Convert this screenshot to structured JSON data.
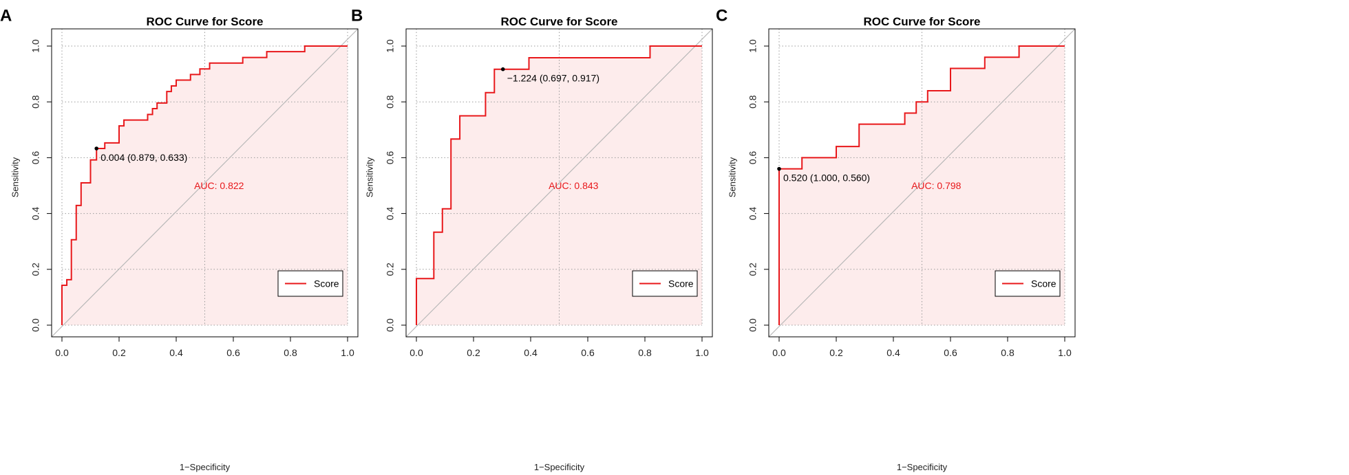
{
  "colors": {
    "curve": "#e8171a",
    "fill": "#fdecec",
    "diagonal": "#b8b8b8",
    "grid": "#9a9a9a",
    "frame": "#000000"
  },
  "chart_data": [
    {
      "type": "line",
      "panel_label": "A",
      "title": "ROC Curve for Score",
      "xlabel": "1−Specificity",
      "ylabel": "Sensitivity",
      "xlim": [
        0,
        1
      ],
      "ylim": [
        0,
        1
      ],
      "x_ticks": [
        "0.0",
        "0.2",
        "0.4",
        "0.6",
        "0.8",
        "1.0"
      ],
      "y_ticks": [
        "0.0",
        "0.2",
        "0.4",
        "0.6",
        "0.8",
        "1.0"
      ],
      "grid": true,
      "series": [
        {
          "name": "Score",
          "points": [
            [
              0,
              0
            ],
            [
              0,
              0.143
            ],
            [
              0.017,
              0.143
            ],
            [
              0.017,
              0.163
            ],
            [
              0.033,
              0.163
            ],
            [
              0.033,
              0.306
            ],
            [
              0.05,
              0.306
            ],
            [
              0.05,
              0.429
            ],
            [
              0.067,
              0.429
            ],
            [
              0.067,
              0.51
            ],
            [
              0.1,
              0.51
            ],
            [
              0.1,
              0.592
            ],
            [
              0.121,
              0.592
            ],
            [
              0.121,
              0.633
            ],
            [
              0.15,
              0.633
            ],
            [
              0.15,
              0.653
            ],
            [
              0.2,
              0.653
            ],
            [
              0.2,
              0.714
            ],
            [
              0.217,
              0.714
            ],
            [
              0.217,
              0.735
            ],
            [
              0.3,
              0.735
            ],
            [
              0.3,
              0.755
            ],
            [
              0.317,
              0.755
            ],
            [
              0.317,
              0.776
            ],
            [
              0.333,
              0.776
            ],
            [
              0.333,
              0.796
            ],
            [
              0.367,
              0.796
            ],
            [
              0.367,
              0.837
            ],
            [
              0.383,
              0.837
            ],
            [
              0.383,
              0.857
            ],
            [
              0.4,
              0.857
            ],
            [
              0.4,
              0.878
            ],
            [
              0.45,
              0.878
            ],
            [
              0.45,
              0.898
            ],
            [
              0.483,
              0.898
            ],
            [
              0.483,
              0.918
            ],
            [
              0.517,
              0.918
            ],
            [
              0.517,
              0.939
            ],
            [
              0.633,
              0.939
            ],
            [
              0.633,
              0.959
            ],
            [
              0.717,
              0.959
            ],
            [
              0.717,
              0.98
            ],
            [
              0.85,
              0.98
            ],
            [
              0.85,
              1.0
            ],
            [
              1.0,
              1.0
            ]
          ]
        }
      ],
      "auc_text": "AUC: 0.822",
      "threshold_point": {
        "fpr": 0.121,
        "tpr": 0.633,
        "label": "0.004 (0.879, 0.633)"
      },
      "legend": {
        "label": "Score",
        "position": "bottom-right"
      }
    },
    {
      "type": "line",
      "panel_label": "B",
      "title": "ROC Curve for Score",
      "xlabel": "1−Specificity",
      "ylabel": "Sensitivity",
      "xlim": [
        0,
        1
      ],
      "ylim": [
        0,
        1
      ],
      "x_ticks": [
        "0.0",
        "0.2",
        "0.4",
        "0.6",
        "0.8",
        "1.0"
      ],
      "y_ticks": [
        "0.0",
        "0.2",
        "0.4",
        "0.6",
        "0.8",
        "1.0"
      ],
      "grid": true,
      "series": [
        {
          "name": "Score",
          "points": [
            [
              0,
              0
            ],
            [
              0,
              0.167
            ],
            [
              0.061,
              0.167
            ],
            [
              0.061,
              0.333
            ],
            [
              0.091,
              0.333
            ],
            [
              0.091,
              0.417
            ],
            [
              0.121,
              0.417
            ],
            [
              0.121,
              0.667
            ],
            [
              0.152,
              0.667
            ],
            [
              0.152,
              0.75
            ],
            [
              0.242,
              0.75
            ],
            [
              0.242,
              0.833
            ],
            [
              0.273,
              0.833
            ],
            [
              0.273,
              0.917
            ],
            [
              0.394,
              0.917
            ],
            [
              0.394,
              0.958
            ],
            [
              0.818,
              0.958
            ],
            [
              0.818,
              1.0
            ],
            [
              1.0,
              1.0
            ]
          ]
        }
      ],
      "auc_text": "AUC: 0.843",
      "threshold_point": {
        "fpr": 0.303,
        "tpr": 0.917,
        "label": "−1.224 (0.697, 0.917)"
      },
      "legend": {
        "label": "Score",
        "position": "bottom-right"
      }
    },
    {
      "type": "line",
      "panel_label": "C",
      "title": "ROC Curve for Score",
      "xlabel": "1−Specificity",
      "ylabel": "Sensitivity",
      "xlim": [
        0,
        1
      ],
      "ylim": [
        0,
        1
      ],
      "x_ticks": [
        "0.0",
        "0.2",
        "0.4",
        "0.6",
        "0.8",
        "1.0"
      ],
      "y_ticks": [
        "0.0",
        "0.2",
        "0.4",
        "0.6",
        "0.8",
        "1.0"
      ],
      "grid": true,
      "series": [
        {
          "name": "Score",
          "points": [
            [
              0,
              0
            ],
            [
              0,
              0.56
            ],
            [
              0.08,
              0.56
            ],
            [
              0.08,
              0.6
            ],
            [
              0.2,
              0.6
            ],
            [
              0.2,
              0.64
            ],
            [
              0.28,
              0.64
            ],
            [
              0.28,
              0.72
            ],
            [
              0.44,
              0.72
            ],
            [
              0.44,
              0.76
            ],
            [
              0.48,
              0.76
            ],
            [
              0.48,
              0.8
            ],
            [
              0.52,
              0.8
            ],
            [
              0.52,
              0.84
            ],
            [
              0.6,
              0.84
            ],
            [
              0.6,
              0.92
            ],
            [
              0.72,
              0.92
            ],
            [
              0.72,
              0.96
            ],
            [
              0.84,
              0.96
            ],
            [
              0.84,
              1.0
            ],
            [
              1.0,
              1.0
            ]
          ]
        }
      ],
      "auc_text": "AUC: 0.798",
      "threshold_point": {
        "fpr": 0.0,
        "tpr": 0.56,
        "label": "0.520 (1.000, 0.560)"
      },
      "legend": {
        "label": "Score",
        "position": "bottom-right"
      }
    }
  ]
}
